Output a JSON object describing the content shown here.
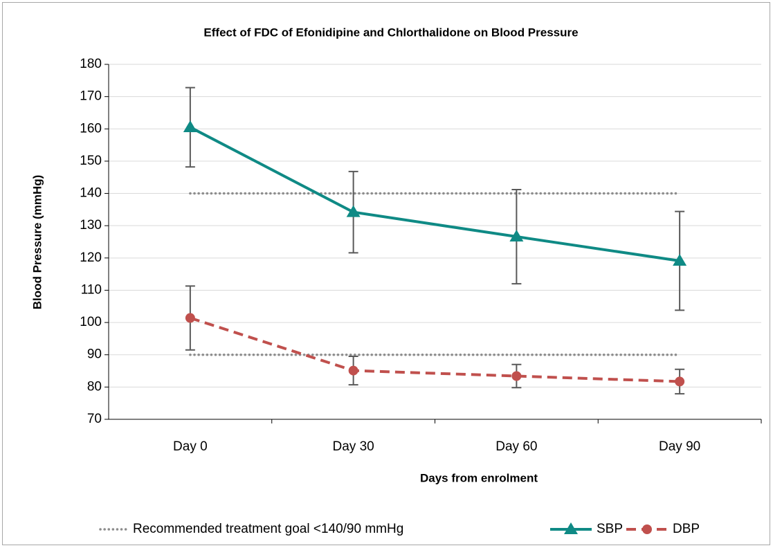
{
  "chart_data": {
    "type": "line",
    "title": "Effect of FDC of Efonidipine and Chlorthalidone on Blood Pressure",
    "x_label": "Days from enrolment",
    "y_label": "Blood Pressure (mmHg)",
    "categories": [
      "Day 0",
      "Day 30",
      "Day 60",
      "Day 90"
    ],
    "ylim": [
      70,
      180
    ],
    "yticks": [
      70,
      80,
      90,
      100,
      110,
      120,
      130,
      140,
      150,
      160,
      170,
      180
    ],
    "grid": true,
    "reference_lines": {
      "name": "Recommended treatment goal <140/90 mmHg",
      "color": "#8c8c8c",
      "values": [
        140,
        90
      ]
    },
    "series": [
      {
        "name": "SBP",
        "color": "#0f8a85",
        "marker": "triangle",
        "dash": "solid",
        "values": [
          160.5,
          134.2,
          126.6,
          119.1
        ],
        "errors": [
          12.3,
          12.6,
          14.6,
          15.3
        ]
      },
      {
        "name": "DBP",
        "color": "#c0504d",
        "marker": "circle",
        "dash": "dashed",
        "values": [
          101.4,
          85.1,
          83.4,
          81.7
        ],
        "errors": [
          9.9,
          4.4,
          3.6,
          3.8
        ]
      }
    ],
    "legend": "bottom"
  }
}
